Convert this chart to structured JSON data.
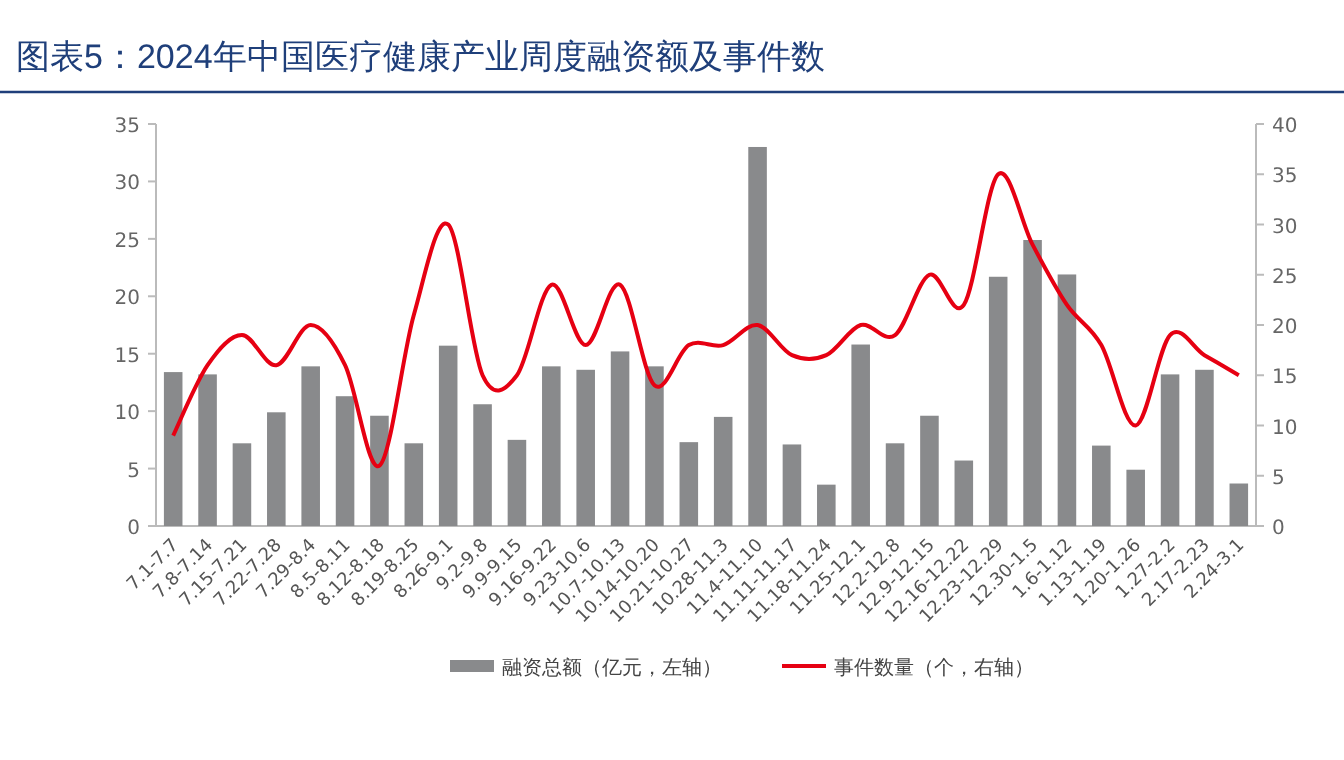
{
  "chart_data": {
    "type": "bar",
    "title": "图表5：2024年中国医疗健康产业周度融资额及事件数",
    "categories": [
      "7.1-7.7",
      "7.8-7.14",
      "7.15-7.21",
      "7.22-7.28",
      "7.29-8.4",
      "8.5-8.11",
      "8.12-8.18",
      "8.19-8.25",
      "8.26-9.1",
      "9.2-9.8",
      "9.9-9.15",
      "9.16-9.22",
      "9.23-10.6",
      "10.7-10.13",
      "10.14-10.20",
      "10.21-10.27",
      "10.28-11.3",
      "11.4-11.10",
      "11.11-11.17",
      "11.18-11.24",
      "11.25-12.1",
      "12.2-12.8",
      "12.9-12.15",
      "12.16-12.22",
      "12.23-12.29",
      "12.30-1.5",
      "1.6-1.12",
      "1.13-1.19",
      "1.20-1.26",
      "1.27-2.2",
      "2.17-2.23",
      "2.24-3.1"
    ],
    "series": [
      {
        "name": "融资总额（亿元，左轴）",
        "color": "#898a8c",
        "values": [
          13.4,
          13.2,
          7.2,
          9.9,
          13.9,
          11.3,
          9.6,
          7.2,
          15.7,
          10.6,
          7.5,
          13.9,
          13.6,
          15.2,
          13.9,
          7.3,
          9.5,
          33,
          7.1,
          3.6,
          15.8,
          7.2,
          9.6,
          5.7,
          21.7,
          24.9,
          21.9,
          7,
          4.9,
          13.2,
          13.6,
          3.7
        ]
      },
      {
        "name": "事件数量（个，右轴）",
        "type": "line",
        "axis": "y2",
        "color": "#e60012",
        "values": [
          9,
          16,
          19,
          16,
          20,
          16,
          6,
          21,
          30,
          15,
          15,
          24,
          18,
          24,
          14,
          18,
          18,
          20,
          17,
          17,
          20,
          19,
          25,
          22,
          35,
          28,
          22,
          18,
          10,
          19,
          17,
          15
        ]
      }
    ],
    "ylim": [
      0,
      35
    ],
    "yticks": [
      0,
      5,
      10,
      15,
      20,
      25,
      30,
      35
    ],
    "y2lim": [
      0,
      40
    ],
    "y2ticks": [
      0,
      5,
      10,
      15,
      20,
      25,
      30,
      35,
      40
    ],
    "legend": "bottom",
    "grid": false
  }
}
